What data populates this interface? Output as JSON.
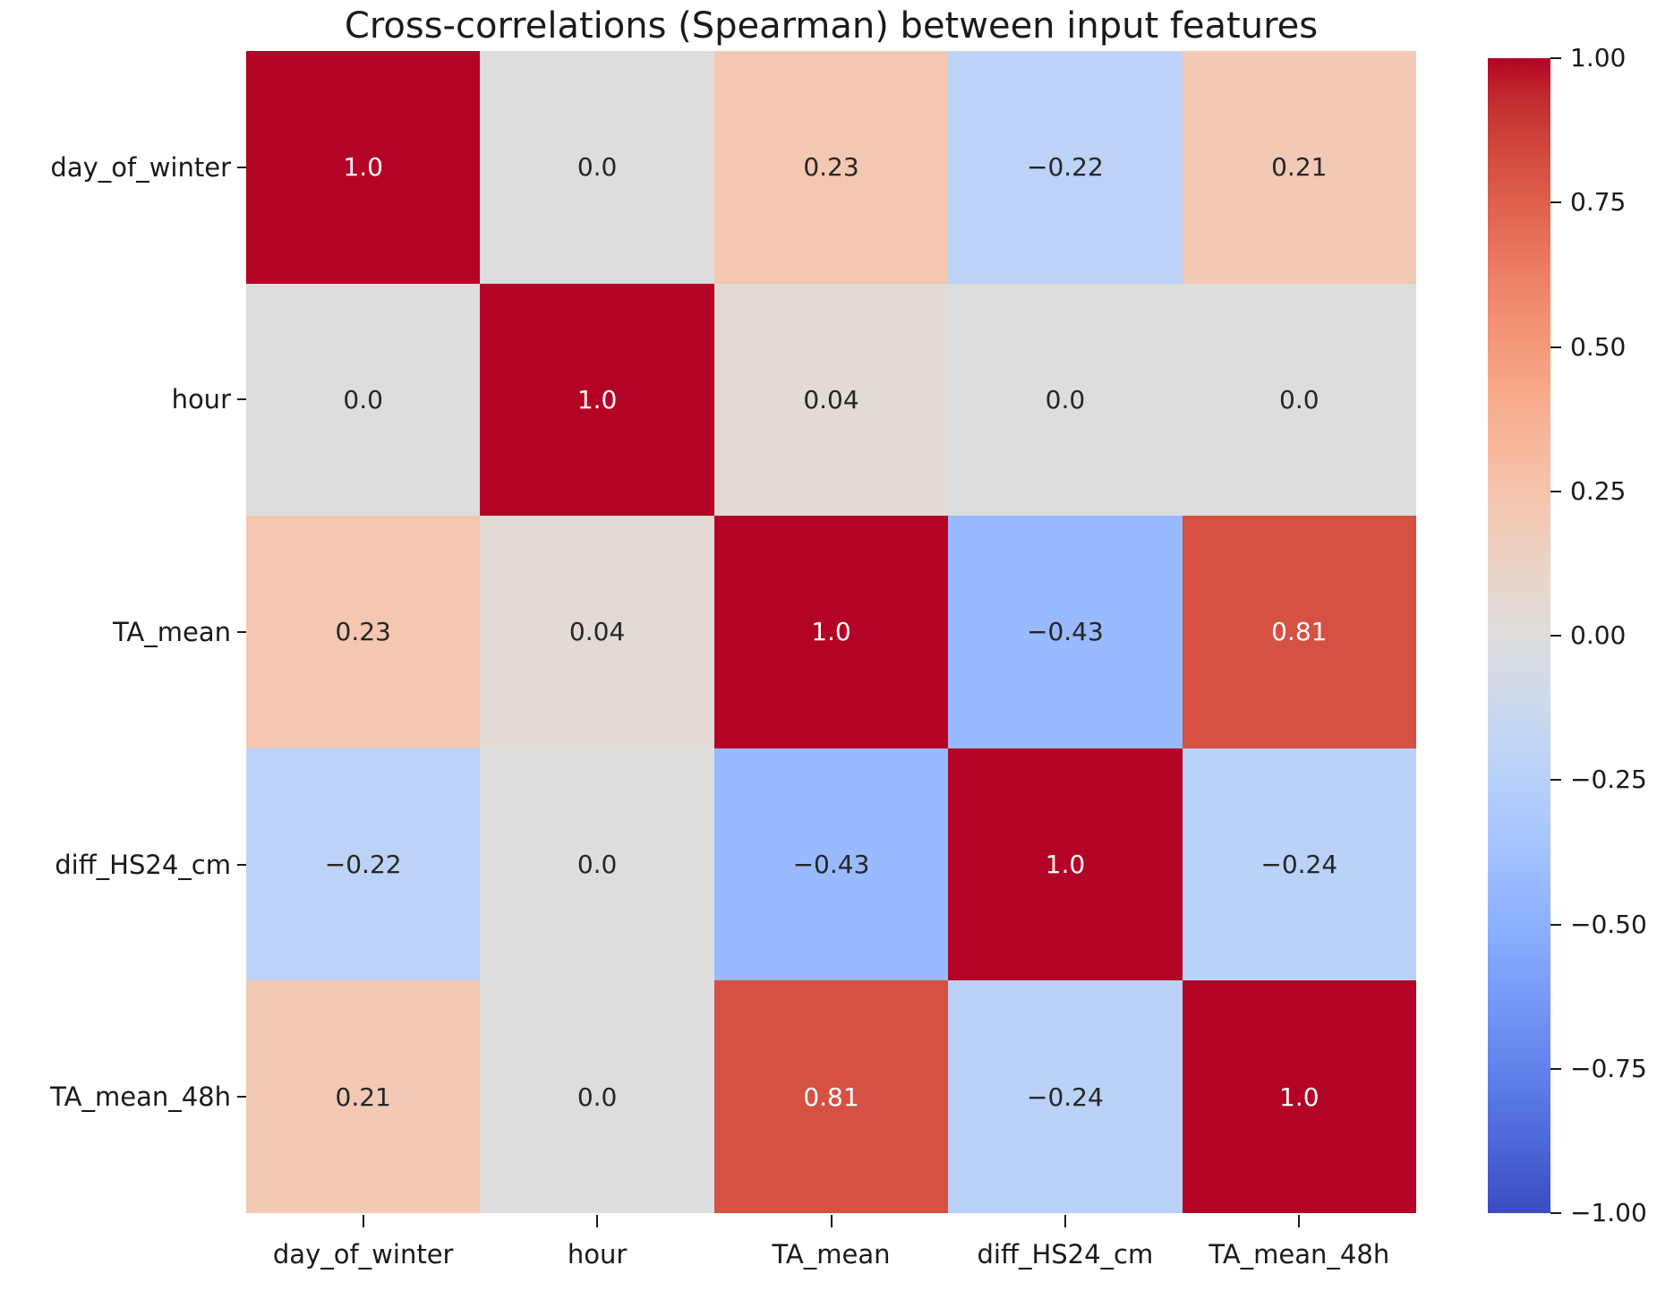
{
  "chart_data": {
    "type": "heatmap",
    "title": "Cross-correlations (Spearman) between input features",
    "categories": [
      "day_of_winter",
      "hour",
      "TA_mean",
      "diff_HS24_cm",
      "TA_mean_48h"
    ],
    "x_categories": [
      "day_of_winter",
      "hour",
      "TA_mean",
      "diff_HS24_cm",
      "TA_mean_48h"
    ],
    "matrix": [
      [
        1.0,
        0.0,
        0.23,
        -0.22,
        0.21
      ],
      [
        0.0,
        1.0,
        0.04,
        0.0,
        0.0
      ],
      [
        0.23,
        0.04,
        1.0,
        -0.43,
        0.81
      ],
      [
        -0.22,
        0.0,
        -0.43,
        1.0,
        -0.24
      ],
      [
        0.21,
        0.0,
        0.81,
        -0.24,
        1.0
      ]
    ],
    "cell_labels": [
      [
        "1.0",
        "0.0",
        "0.23",
        "−0.22",
        "0.21"
      ],
      [
        "0.0",
        "1.0",
        "0.04",
        "0.0",
        "0.0"
      ],
      [
        "0.23",
        "0.04",
        "1.0",
        "−0.43",
        "0.81"
      ],
      [
        "−0.22",
        "0.0",
        "−0.43",
        "1.0",
        "−0.24"
      ],
      [
        "0.21",
        "0.0",
        "0.81",
        "−0.24",
        "1.0"
      ]
    ],
    "colormap": "coolwarm",
    "vmin": -1.0,
    "vmax": 1.0,
    "colorbar_ticks": [
      "1.00",
      "0.75",
      "0.50",
      "0.25",
      "0.00",
      "−0.25",
      "−0.50",
      "−0.75",
      "−1.00"
    ],
    "colorbar_tick_values": [
      1.0,
      0.75,
      0.5,
      0.25,
      0.0,
      -0.25,
      -0.5,
      -0.75,
      -1.0
    ],
    "legend_position": "right",
    "grid": false,
    "colors": {
      "max": "#b40426",
      "mid": "#dddddd",
      "min": "#3b4cc0",
      "annotation_dark": "#262626",
      "annotation_light": "#ffffff",
      "tick_text": "#1a1a1a",
      "background": "#ffffff"
    }
  }
}
